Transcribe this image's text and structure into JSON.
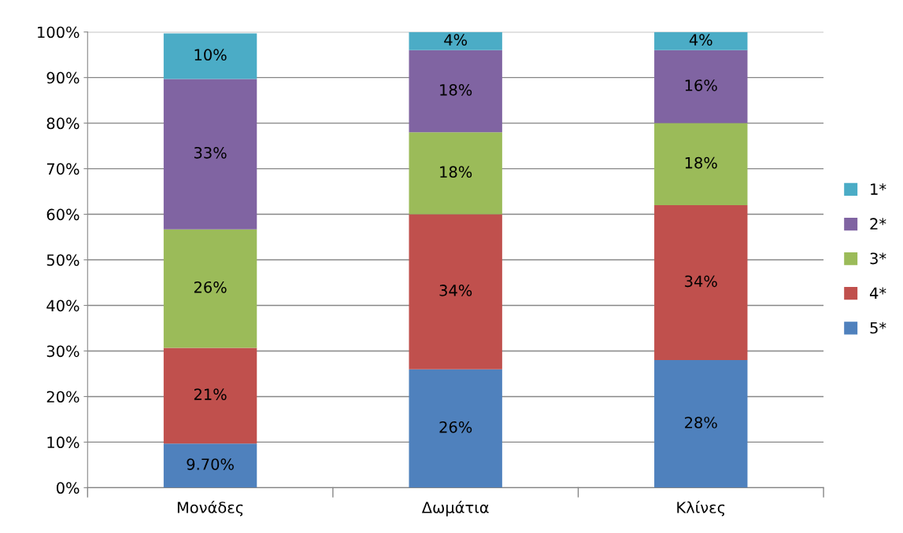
{
  "chart_data": {
    "type": "bar",
    "stacked": true,
    "categories": [
      "Μονάδες",
      "Δωμάτια",
      "Κλίνες"
    ],
    "series": [
      {
        "name": "5*",
        "color": "#4f81bd",
        "values": [
          9.7,
          26,
          28
        ],
        "value_labels": [
          "9.70%",
          "26%",
          "28%"
        ]
      },
      {
        "name": "4*",
        "color": "#c0504d",
        "values": [
          21,
          34,
          34
        ],
        "value_labels": [
          "21%",
          "34%",
          "34%"
        ]
      },
      {
        "name": "3*",
        "color": "#9bbb59",
        "values": [
          26,
          18,
          18
        ],
        "value_labels": [
          "26%",
          "18%",
          "18%"
        ]
      },
      {
        "name": "2*",
        "color": "#8064a2",
        "values": [
          33,
          18,
          16
        ],
        "value_labels": [
          "33%",
          "18%",
          "16%"
        ]
      },
      {
        "name": "1*",
        "color": "#4bacc6",
        "values": [
          10,
          4,
          4
        ],
        "value_labels": [
          "10%",
          "4%",
          "4%"
        ]
      }
    ],
    "ylim": [
      0,
      100
    ],
    "yticks": [
      {
        "value": 0,
        "label": "0%"
      },
      {
        "value": 10,
        "label": "10%"
      },
      {
        "value": 20,
        "label": "20%"
      },
      {
        "value": 30,
        "label": "30%"
      },
      {
        "value": 40,
        "label": "40%"
      },
      {
        "value": 50,
        "label": "50%"
      },
      {
        "value": 60,
        "label": "60%"
      },
      {
        "value": 70,
        "label": "70%"
      },
      {
        "value": 80,
        "label": "80%"
      },
      {
        "value": 90,
        "label": "90%"
      },
      {
        "value": 100,
        "label": "100%"
      }
    ],
    "grid": "y",
    "legend": "right"
  }
}
